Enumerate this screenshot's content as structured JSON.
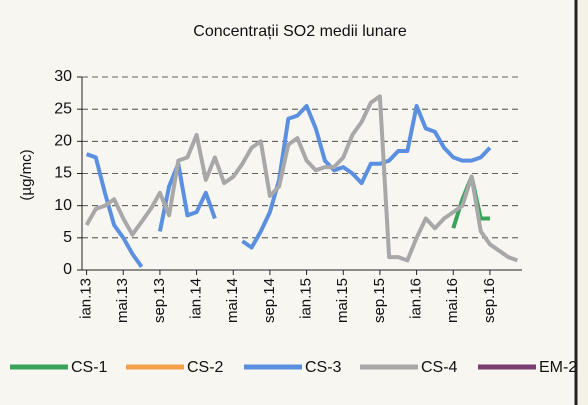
{
  "chart_data": {
    "type": "line",
    "title": "Concentrații SO2  medii  lunare",
    "y_label": "(µg/mc)",
    "categories": [
      "ian.13",
      null,
      null,
      null,
      "mai.13",
      null,
      null,
      null,
      "sep.13",
      null,
      null,
      null,
      "ian.14",
      null,
      null,
      null,
      "mai.14",
      null,
      null,
      null,
      "sep.14",
      null,
      null,
      null,
      "ian.15",
      null,
      null,
      null,
      "mai.15",
      null,
      null,
      null,
      "sep.15",
      null,
      null,
      null,
      "ian.16",
      null,
      null,
      null,
      "mai.16",
      null,
      null,
      null,
      "sep.16",
      null,
      null,
      null
    ],
    "series": [
      {
        "name": "CS-1",
        "color": "#3aa35a",
        "values": [
          null,
          null,
          null,
          null,
          null,
          null,
          null,
          null,
          null,
          null,
          null,
          null,
          null,
          null,
          null,
          null,
          null,
          null,
          null,
          null,
          null,
          null,
          null,
          null,
          null,
          null,
          null,
          null,
          null,
          null,
          null,
          null,
          null,
          null,
          null,
          null,
          null,
          null,
          null,
          null,
          6.5,
          11,
          14.5,
          8,
          8,
          null,
          null,
          null
        ]
      },
      {
        "name": "CS-2",
        "color": "#f4a04a",
        "values": [
          null,
          null,
          null,
          null,
          null,
          null,
          null,
          null,
          null,
          null,
          null,
          null,
          null,
          null,
          null,
          null,
          null,
          null,
          null,
          null,
          null,
          null,
          null,
          null,
          null,
          null,
          null,
          null,
          null,
          null,
          null,
          null,
          null,
          null,
          null,
          null,
          null,
          null,
          null,
          null,
          null,
          null,
          null,
          null,
          null,
          null,
          null,
          null
        ]
      },
      {
        "name": "CS-3",
        "color": "#5b8fe0",
        "values": [
          18,
          17.5,
          12,
          7,
          5,
          2.5,
          0.5,
          null,
          6,
          13,
          16.5,
          8.5,
          9,
          12,
          8,
          null,
          null,
          4.5,
          3.5,
          6,
          9,
          14,
          23.5,
          24,
          25.5,
          22,
          17,
          15.5,
          16,
          15,
          13.5,
          16.5,
          16.5,
          17,
          18.5,
          18.5,
          25.5,
          22,
          21.5,
          19,
          17.5,
          17,
          17,
          17.5,
          19,
          null,
          null,
          null
        ]
      },
      {
        "name": "CS-4",
        "color": "#a8a8a8",
        "values": [
          7,
          9.5,
          10,
          11,
          8,
          5.5,
          7.5,
          9.5,
          12,
          8.5,
          17,
          17.5,
          21,
          14,
          17.5,
          13.5,
          14.5,
          16.5,
          19,
          20,
          11.5,
          13,
          19.5,
          20.5,
          17,
          15.5,
          16,
          16,
          17.5,
          21,
          23,
          26,
          27,
          2,
          2,
          1.5,
          5,
          8,
          6.5,
          8,
          9,
          10,
          14.5,
          6,
          4,
          3,
          2,
          1.5
        ]
      },
      {
        "name": "EM-2",
        "color": "#7a3f6e",
        "values": [
          null,
          null,
          null,
          null,
          null,
          null,
          null,
          null,
          null,
          null,
          null,
          null,
          null,
          null,
          null,
          null,
          null,
          null,
          null,
          null,
          null,
          null,
          null,
          null,
          null,
          null,
          null,
          null,
          null,
          null,
          null,
          null,
          null,
          null,
          null,
          null,
          null,
          null,
          null,
          null,
          null,
          null,
          null,
          null,
          null,
          null,
          null,
          null
        ]
      }
    ],
    "ylim": [
      0,
      30
    ],
    "yticks": [
      0,
      5,
      10,
      15,
      20,
      25,
      30
    ],
    "grid": true
  }
}
